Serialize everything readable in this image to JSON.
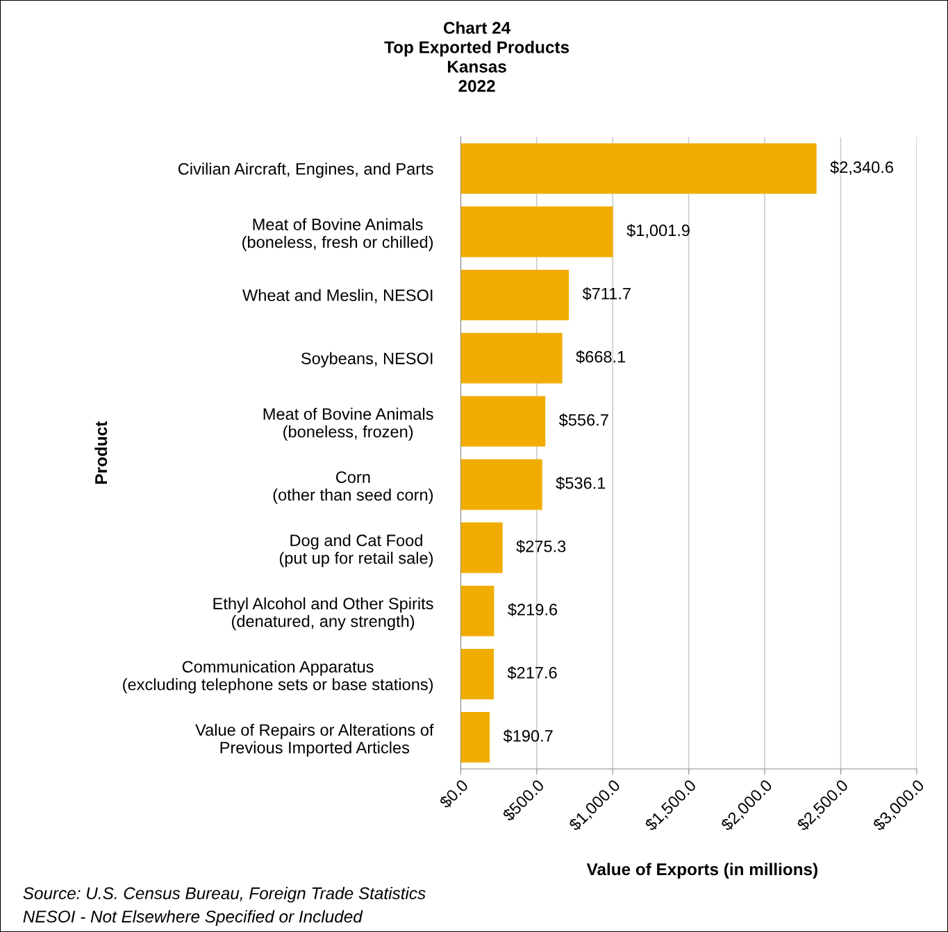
{
  "chart_data": {
    "type": "bar",
    "orientation": "horizontal",
    "title": "Chart 24\nTop Exported Products\nKansas\n2022",
    "xlabel": "Value of Exports (in millions)",
    "ylabel": "Product",
    "categories": [
      "Civilian Aircraft, Engines, and Parts",
      "Meat of Bovine Animals\n(boneless, fresh or chilled)",
      "Wheat and Meslin, NESOI",
      "Soybeans, NESOI",
      "Meat of Bovine Animals\n(boneless, frozen)",
      "Corn\n(other than seed corn)",
      "Dog and Cat Food\n(put up for retail sale)",
      "Ethyl Alcohol and Other Spirits\n(denatured, any strength)",
      "Communication Apparatus\n(excluding telephone sets or base stations)",
      "Value of Repairs or Alterations of\nPrevious Imported Articles"
    ],
    "values": [
      2340.6,
      1001.9,
      711.7,
      668.1,
      556.7,
      536.1,
      275.3,
      219.6,
      217.6,
      190.7
    ],
    "value_labels": [
      "$2,340.6",
      "$1,001.9",
      "$711.7",
      "$668.1",
      "$556.7",
      "$536.1",
      "$275.3",
      "$219.6",
      "$217.6",
      "$190.7"
    ],
    "color": "#f0ad00",
    "xlim": [
      0,
      3000
    ],
    "xticks": [
      {
        "value": 0,
        "label": "$0.0"
      },
      {
        "value": 500,
        "label": "$500.0"
      },
      {
        "value": 1000,
        "label": "$1,000.0"
      },
      {
        "value": 1500,
        "label": "$1,500.0"
      },
      {
        "value": 2000,
        "label": "$2,000.0"
      },
      {
        "value": 2500,
        "label": "$2,500.0"
      },
      {
        "value": 3000,
        "label": "$3,000.0"
      }
    ],
    "grid": "x",
    "legend": false,
    "annotations": [
      "Source: U.S. Census Bureau, Foreign Trade Statistics",
      "NESOI - Not Elsewhere Specified or Included"
    ]
  }
}
